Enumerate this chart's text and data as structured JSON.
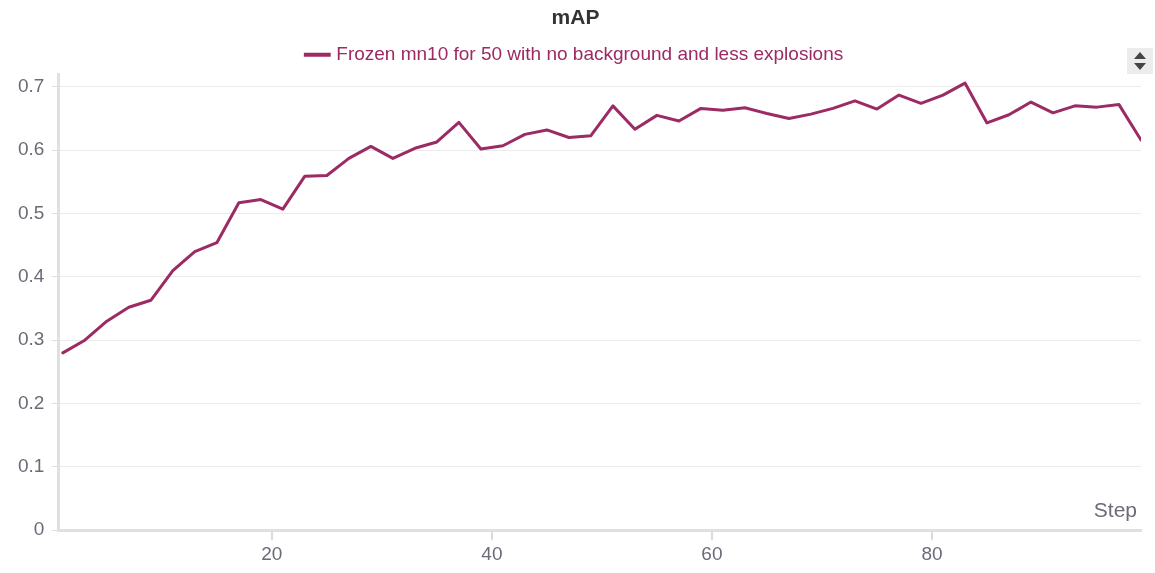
{
  "chart_data": {
    "type": "line",
    "title": "mAP",
    "xlabel": "Step",
    "x": [
      1,
      3,
      5,
      7,
      9,
      11,
      13,
      15,
      17,
      19,
      21,
      23,
      25,
      27,
      29,
      31,
      33,
      35,
      37,
      39,
      41,
      43,
      45,
      47,
      49,
      51,
      53,
      55,
      57,
      59,
      61,
      63,
      65,
      67,
      69,
      71,
      73,
      75,
      77,
      79,
      81,
      83,
      85,
      87,
      89,
      91,
      93,
      95,
      97,
      99
    ],
    "series": [
      {
        "name": "Frozen mn10 for 50 with no background and less explosions",
        "color": "#9c2a63",
        "values": [
          0.28,
          0.3,
          0.33,
          0.352,
          0.363,
          0.41,
          0.44,
          0.454,
          0.517,
          0.522,
          0.507,
          0.559,
          0.56,
          0.587,
          0.606,
          0.587,
          0.603,
          0.613,
          0.644,
          0.602,
          0.607,
          0.625,
          0.632,
          0.62,
          0.623,
          0.67,
          0.633,
          0.655,
          0.646,
          0.666,
          0.663,
          0.667,
          0.658,
          0.65,
          0.657,
          0.666,
          0.678,
          0.665,
          0.687,
          0.674,
          0.687,
          0.706,
          0.643,
          0.656,
          0.676,
          0.659,
          0.67,
          0.668,
          0.672,
          0.616
        ]
      }
    ],
    "xlim": [
      0.6,
      99
    ],
    "xticks": [
      20,
      40,
      60,
      80
    ],
    "ylim": [
      0,
      0.72
    ],
    "yticks": [
      0,
      0.1,
      0.2,
      0.3,
      0.4,
      0.5,
      0.6,
      0.7
    ],
    "grid": "y",
    "legend": "top",
    "marker": "none",
    "line_style": "solid"
  }
}
